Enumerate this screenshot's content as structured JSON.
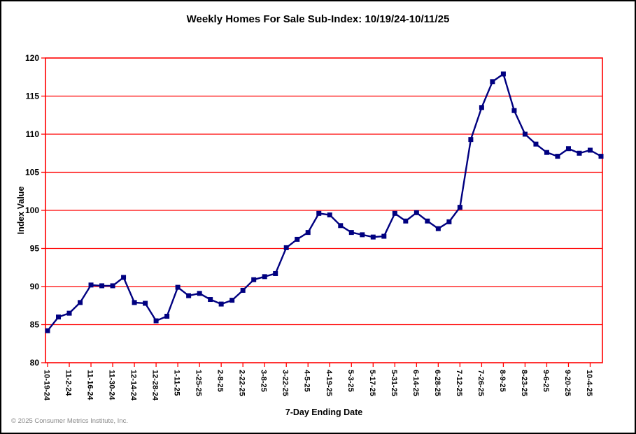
{
  "page": {
    "title": "Weekly Homes For Sale Sub-Index: 10/19/24-10/11/25",
    "footer": "© 2025 Consumer Metrics Institute, Inc."
  },
  "chart_data": {
    "type": "line",
    "title": "Weekly Homes For Sale Sub-Index: 10/19/24-10/11/25",
    "xlabel": "7-Day Ending Date",
    "ylabel": "Index Value",
    "ylim": [
      80,
      120
    ],
    "ytick_interval": 5,
    "yticks": [
      80,
      85,
      90,
      95,
      100,
      105,
      110,
      115,
      120
    ],
    "grid": true,
    "label_every": 2,
    "legend": "none",
    "axis_color": "#ff0000",
    "grid_color": "#ff0000",
    "line_color": "#000080",
    "marker": "square",
    "x": [
      "10-19-24",
      "10-26-24",
      "11-2-24",
      "11-9-24",
      "11-16-24",
      "11-23-24",
      "11-30-24",
      "12-7-24",
      "12-14-24",
      "12-21-24",
      "12-28-24",
      "1-4-25",
      "1-11-25",
      "1-18-25",
      "1-25-25",
      "2-1-25",
      "2-8-25",
      "2-15-25",
      "2-22-25",
      "3-1-25",
      "3-8-25",
      "3-15-25",
      "3-22-25",
      "3-29-25",
      "4-5-25",
      "4-12-25",
      "4-19-25",
      "4-26-25",
      "5-3-25",
      "5-10-25",
      "5-17-25",
      "5-24-25",
      "5-31-25",
      "6-7-25",
      "6-14-25",
      "6-21-25",
      "6-28-25",
      "7-5-25",
      "7-12-25",
      "7-19-25",
      "7-26-25",
      "8-2-25",
      "8-9-25",
      "8-16-25",
      "8-23-25",
      "8-30-25",
      "9-6-25",
      "9-13-25",
      "9-20-25",
      "9-27-25",
      "10-4-25",
      "10-11-25"
    ],
    "values": [
      84.2,
      86.0,
      86.5,
      87.9,
      90.2,
      90.1,
      90.1,
      91.2,
      87.9,
      87.8,
      85.5,
      86.1,
      89.9,
      88.8,
      89.1,
      88.3,
      87.7,
      88.2,
      89.5,
      90.9,
      91.3,
      91.7,
      95.1,
      96.2,
      97.1,
      99.6,
      99.4,
      98.0,
      97.1,
      96.8,
      96.5,
      96.6,
      99.6,
      98.6,
      99.7,
      98.6,
      97.6,
      98.5,
      100.4,
      109.3,
      113.5,
      116.9,
      117.9,
      113.1,
      110.0,
      108.7,
      107.6,
      107.1,
      108.1,
      107.5,
      107.9,
      107.1
    ]
  }
}
